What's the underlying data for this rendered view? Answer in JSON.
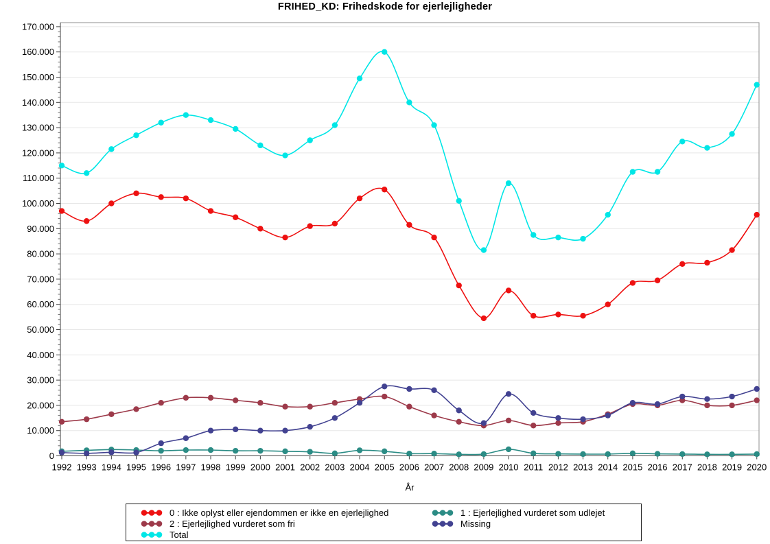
{
  "chart_data": {
    "type": "line",
    "title": "FRIHED_KD: Frihedskode for ejerlejligheder",
    "xlabel": "År",
    "ylabel": "",
    "x": [
      1992,
      1993,
      1994,
      1995,
      1996,
      1997,
      1998,
      1999,
      2000,
      2001,
      2002,
      2003,
      2004,
      2005,
      2006,
      2007,
      2008,
      2009,
      2010,
      2011,
      2012,
      2013,
      2014,
      2015,
      2016,
      2017,
      2018,
      2019,
      2020
    ],
    "ylim": [
      0,
      170000
    ],
    "ytick_step": 10000,
    "ytick_minor_step": 2000,
    "ytick_format": "danish-thousands (170.000)",
    "grid": "horizontal-major",
    "legend_position": "bottom-box",
    "marker": "filled-circle",
    "line_style": "smooth-spline",
    "series": [
      {
        "name": "0 : Ikke oplyst eller ejendommen er ikke en ejerlejlighed",
        "color": "#ee1111",
        "values": [
          97000,
          93000,
          100000,
          104000,
          102500,
          102000,
          97000,
          94500,
          90000,
          86500,
          91000,
          92000,
          102000,
          105500,
          91500,
          86500,
          67500,
          54500,
          65500,
          55500,
          56000,
          55500,
          60000,
          68500,
          69500,
          76000,
          76500,
          81500,
          95500
        ]
      },
      {
        "name": "1 : Ejerlejlighed vurderet som udlejet",
        "color": "#2b8c85",
        "values": [
          1800,
          2200,
          2500,
          2300,
          2000,
          2300,
          2300,
          2000,
          2000,
          1800,
          1600,
          1000,
          2200,
          1800,
          900,
          900,
          600,
          700,
          2600,
          1000,
          800,
          700,
          700,
          1000,
          800,
          700,
          600,
          600,
          700
        ]
      },
      {
        "name": "2 : Ejerlejlighed vurderet som fri",
        "color": "#9d3a4a",
        "values": [
          13500,
          14500,
          16500,
          18500,
          21000,
          23000,
          23000,
          22000,
          21000,
          19500,
          19500,
          21000,
          22500,
          23500,
          19500,
          16000,
          13500,
          12000,
          14000,
          12000,
          13000,
          13500,
          16500,
          20500,
          20000,
          22000,
          20000,
          20000,
          22000
        ]
      },
      {
        "name": "Missing",
        "color": "#424291",
        "values": [
          1300,
          1000,
          1400,
          1300,
          5000,
          7000,
          10000,
          10500,
          10000,
          10000,
          11500,
          15000,
          21000,
          27500,
          26500,
          26000,
          18000,
          13000,
          24500,
          17000,
          15000,
          14500,
          16000,
          21000,
          20500,
          23500,
          22500,
          23500,
          26500
        ]
      },
      {
        "name": "Total",
        "color": "#00e6e6",
        "values": [
          115000,
          112000,
          121500,
          127000,
          132000,
          135000,
          133000,
          129500,
          123000,
          119000,
          125000,
          131000,
          149500,
          160000,
          140000,
          131000,
          101000,
          81500,
          108000,
          87500,
          86500,
          86000,
          95500,
          112500,
          112500,
          124500,
          122000,
          127500,
          147000
        ]
      }
    ],
    "frame_color": "#8f8f8f",
    "axis_color": "#3f3f3f",
    "grid_color": "#e7e7e7"
  }
}
